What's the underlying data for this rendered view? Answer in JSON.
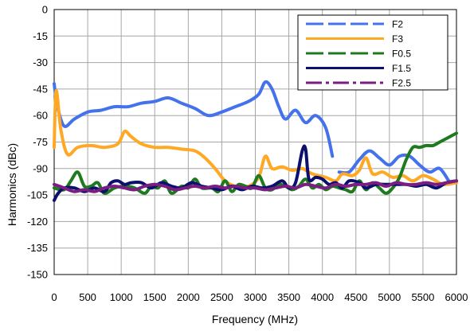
{
  "chart_data": {
    "type": "line",
    "xlabel": "Frequency (MHz)",
    "ylabel": "Harmonics (dBc)",
    "xlim": [
      0,
      6000
    ],
    "ylim": [
      -150,
      0
    ],
    "xticks": [
      0,
      500,
      1000,
      1500,
      2000,
      2500,
      3000,
      3500,
      4000,
      4500,
      5000,
      5500,
      6000
    ],
    "yticks": [
      0,
      -15,
      -30,
      -45,
      -60,
      -75,
      -90,
      -105,
      -120,
      -135,
      -150
    ],
    "grid": true,
    "legend_position": "top-right",
    "series": [
      {
        "name": "F2",
        "color": "#4472ec",
        "style": "dashed",
        "segments": [
          [
            [
              0,
              -42
            ],
            [
              50,
              -55
            ],
            [
              150,
              -66
            ],
            [
              300,
              -62
            ],
            [
              500,
              -58
            ],
            [
              700,
              -57
            ],
            [
              900,
              -55
            ],
            [
              1100,
              -55
            ],
            [
              1300,
              -53
            ],
            [
              1500,
              -52
            ],
            [
              1700,
              -50
            ],
            [
              1900,
              -53
            ],
            [
              2100,
              -56
            ],
            [
              2300,
              -60
            ],
            [
              2500,
              -58
            ],
            [
              2700,
              -55
            ],
            [
              2900,
              -52
            ],
            [
              3050,
              -48
            ],
            [
              3150,
              -41
            ],
            [
              3250,
              -45
            ],
            [
              3350,
              -55
            ],
            [
              3450,
              -62
            ],
            [
              3600,
              -57
            ],
            [
              3750,
              -64
            ],
            [
              3900,
              -60
            ],
            [
              4050,
              -67
            ],
            [
              4150,
              -83
            ]
          ],
          [
            [
              4250,
              -92
            ],
            [
              4400,
              -92
            ],
            [
              4550,
              -85
            ],
            [
              4700,
              -80
            ],
            [
              4850,
              -84
            ],
            [
              5000,
              -88
            ],
            [
              5150,
              -83
            ],
            [
              5300,
              -83
            ],
            [
              5450,
              -88
            ],
            [
              5600,
              -92
            ],
            [
              5750,
              -90
            ],
            [
              5900,
              -98
            ]
          ]
        ]
      },
      {
        "name": "F3",
        "color": "#ffa824",
        "style": "solid",
        "segments": [
          [
            [
              0,
              -78
            ],
            [
              30,
              -46
            ],
            [
              100,
              -68
            ],
            [
              200,
              -82
            ],
            [
              350,
              -78
            ],
            [
              550,
              -77
            ],
            [
              750,
              -78
            ],
            [
              950,
              -76
            ],
            [
              1050,
              -69
            ],
            [
              1150,
              -72
            ],
            [
              1300,
              -76
            ],
            [
              1500,
              -78
            ],
            [
              1700,
              -78
            ],
            [
              1900,
              -79
            ],
            [
              2100,
              -80
            ],
            [
              2250,
              -84
            ],
            [
              2400,
              -90
            ],
            [
              2550,
              -97
            ],
            [
              2700,
              -100
            ],
            [
              2900,
              -100
            ],
            [
              3050,
              -95
            ],
            [
              3150,
              -83
            ],
            [
              3250,
              -90
            ],
            [
              3400,
              -89
            ],
            [
              3550,
              -91
            ],
            [
              3700,
              -90
            ],
            [
              3850,
              -93
            ],
            [
              4050,
              -95
            ],
            [
              4200,
              -97
            ],
            [
              4300,
              -93
            ],
            [
              4450,
              -94
            ],
            [
              4550,
              -91
            ],
            [
              4650,
              -84
            ],
            [
              4750,
              -93
            ],
            [
              4900,
              -92
            ],
            [
              5050,
              -95
            ],
            [
              5200,
              -94
            ],
            [
              5350,
              -97
            ],
            [
              5500,
              -94
            ],
            [
              5650,
              -96
            ],
            [
              5800,
              -99
            ],
            [
              6000,
              -98
            ]
          ]
        ]
      },
      {
        "name": "F0.5",
        "color": "#1e7a1e",
        "style": "dashed",
        "segments": [
          [
            [
              0,
              -101
            ],
            [
              150,
              -102
            ],
            [
              250,
              -97
            ],
            [
              350,
              -92
            ],
            [
              450,
              -100
            ],
            [
              550,
              -100
            ],
            [
              650,
              -98
            ],
            [
              750,
              -104
            ],
            [
              900,
              -101
            ],
            [
              1050,
              -100
            ],
            [
              1200,
              -101
            ],
            [
              1350,
              -104
            ],
            [
              1450,
              -100
            ],
            [
              1550,
              -101
            ],
            [
              1650,
              -97
            ],
            [
              1750,
              -104
            ],
            [
              1900,
              -100
            ],
            [
              2000,
              -101
            ],
            [
              2100,
              -96
            ],
            [
              2200,
              -101
            ],
            [
              2350,
              -101
            ],
            [
              2450,
              -103
            ],
            [
              2550,
              -97
            ],
            [
              2650,
              -103
            ],
            [
              2750,
              -99
            ],
            [
              2850,
              -100
            ],
            [
              2950,
              -101
            ],
            [
              3050,
              -94
            ],
            [
              3150,
              -101
            ],
            [
              3250,
              -102
            ],
            [
              3350,
              -99
            ],
            [
              3450,
              -100
            ],
            [
              3550,
              -102
            ],
            [
              3650,
              -100
            ],
            [
              3750,
              -96
            ],
            [
              3850,
              -101
            ],
            [
              3950,
              -99
            ],
            [
              4050,
              -102
            ],
            [
              4150,
              -100
            ],
            [
              4250,
              -101
            ],
            [
              4350,
              -102
            ],
            [
              4450,
              -103
            ],
            [
              4550,
              -97
            ],
            [
              4650,
              -102
            ],
            [
              4750,
              -98
            ],
            [
              4850,
              -101
            ],
            [
              4950,
              -104
            ],
            [
              5050,
              -101
            ],
            [
              5150,
              -95
            ],
            [
              5250,
              -85
            ],
            [
              5350,
              -78
            ],
            [
              5450,
              -78
            ],
            [
              5550,
              -77
            ],
            [
              5650,
              -77
            ],
            [
              5750,
              -75
            ],
            [
              5850,
              -73
            ],
            [
              6000,
              -70
            ]
          ]
        ]
      },
      {
        "name": "F1.5",
        "color": "#0b0f6e",
        "style": "solid",
        "segments": [
          [
            [
              0,
              -108
            ],
            [
              60,
              -104
            ],
            [
              150,
              -101
            ],
            [
              300,
              -101
            ],
            [
              450,
              -103
            ],
            [
              600,
              -101
            ],
            [
              750,
              -103
            ],
            [
              850,
              -98
            ],
            [
              950,
              -97
            ],
            [
              1050,
              -99
            ],
            [
              1150,
              -98
            ],
            [
              1300,
              -98
            ],
            [
              1450,
              -101
            ],
            [
              1600,
              -98
            ],
            [
              1750,
              -100
            ],
            [
              1900,
              -101
            ],
            [
              2050,
              -98
            ],
            [
              2200,
              -100
            ],
            [
              2350,
              -101
            ],
            [
              2500,
              -102
            ],
            [
              2650,
              -100
            ],
            [
              2800,
              -102
            ],
            [
              2950,
              -100
            ],
            [
              3100,
              -101
            ],
            [
              3250,
              -100
            ],
            [
              3400,
              -97
            ],
            [
              3500,
              -101
            ],
            [
              3600,
              -98
            ],
            [
              3700,
              -80
            ],
            [
              3750,
              -79
            ],
            [
              3800,
              -96
            ],
            [
              3900,
              -95
            ],
            [
              4000,
              -96
            ],
            [
              4100,
              -99
            ],
            [
              4200,
              -98
            ],
            [
              4300,
              -101
            ],
            [
              4400,
              -97
            ],
            [
              4550,
              -98
            ],
            [
              4650,
              -101
            ],
            [
              4800,
              -99
            ],
            [
              4950,
              -99
            ],
            [
              5100,
              -99
            ],
            [
              5250,
              -99
            ],
            [
              5400,
              -100
            ],
            [
              5550,
              -99
            ],
            [
              5700,
              -101
            ],
            [
              5850,
              -98
            ],
            [
              6000,
              -97
            ]
          ]
        ]
      },
      {
        "name": "F2.5",
        "color": "#7a1e82",
        "style": "dashdot",
        "segments": [
          [
            [
              0,
              -99
            ],
            [
              150,
              -101
            ],
            [
              300,
              -103
            ],
            [
              450,
              -102
            ],
            [
              600,
              -103
            ],
            [
              750,
              -101
            ],
            [
              900,
              -100
            ],
            [
              1050,
              -101
            ],
            [
              1200,
              -102
            ],
            [
              1350,
              -100
            ],
            [
              1500,
              -99
            ],
            [
              1650,
              -100
            ],
            [
              1800,
              -102
            ],
            [
              1950,
              -101
            ],
            [
              2100,
              -100
            ],
            [
              2250,
              -101
            ],
            [
              2400,
              -100
            ],
            [
              2550,
              -101
            ],
            [
              2700,
              -100
            ],
            [
              2850,
              -101
            ],
            [
              3000,
              -101
            ],
            [
              3150,
              -102
            ],
            [
              3300,
              -101
            ],
            [
              3450,
              -100
            ],
            [
              3600,
              -101
            ],
            [
              3750,
              -99
            ],
            [
              3900,
              -100
            ],
            [
              4050,
              -101
            ],
            [
              4200,
              -99
            ],
            [
              4350,
              -100
            ],
            [
              4500,
              -99
            ],
            [
              4650,
              -99
            ],
            [
              4800,
              -98
            ],
            [
              4950,
              -100
            ],
            [
              5100,
              -98
            ],
            [
              5250,
              -99
            ],
            [
              5400,
              -99
            ],
            [
              5550,
              -98
            ],
            [
              5700,
              -99
            ],
            [
              5850,
              -98
            ],
            [
              6000,
              -97
            ]
          ]
        ]
      }
    ]
  }
}
